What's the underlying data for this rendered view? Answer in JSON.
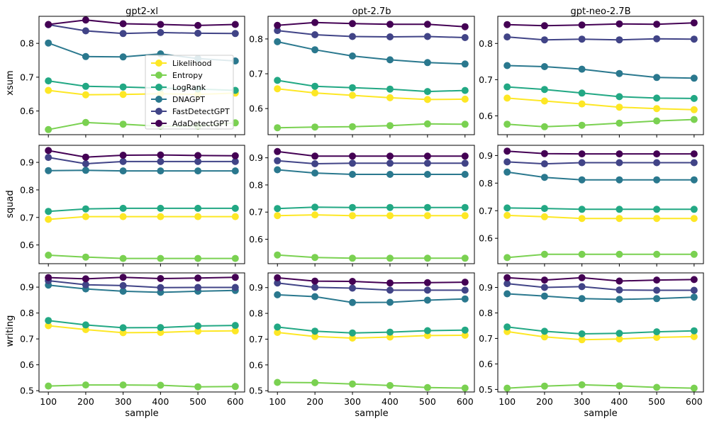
{
  "chart_data": {
    "type": "line",
    "columns": [
      "gpt2-xl",
      "opt-2.7b",
      "gpt-neo-2.7B"
    ],
    "rows": [
      "xsum",
      "squad",
      "writing"
    ],
    "xlabel": "sample",
    "x": [
      100,
      200,
      300,
      400,
      500,
      600
    ],
    "legend": {
      "location": "inside upper-right of top-left panel"
    },
    "series_names": [
      "Likelihood",
      "Entropy",
      "LogRank",
      "DNAGPT",
      "FastDetectGPT",
      "AdaDetectGPT"
    ],
    "series_colors": [
      "#fde725",
      "#7ad151",
      "#22a884",
      "#2a788e",
      "#414487",
      "#440154"
    ],
    "panels": [
      {
        "row": "xsum",
        "col": "gpt2-xl",
        "ylim": [
          0.53,
          0.88
        ],
        "yticks": [
          "0.6",
          "0.7",
          "0.8"
        ],
        "series": [
          {
            "name": "Likelihood",
            "values": [
              0.661,
              0.648,
              0.649,
              0.651,
              0.649,
              0.653
            ]
          },
          {
            "name": "Entropy",
            "values": [
              0.545,
              0.566,
              0.561,
              0.555,
              0.555,
              0.565
            ]
          },
          {
            "name": "LogRank",
            "values": [
              0.689,
              0.673,
              0.671,
              0.668,
              0.665,
              0.661
            ]
          },
          {
            "name": "DNAGPT",
            "values": [
              0.801,
              0.761,
              0.76,
              0.769,
              0.755,
              0.748
            ]
          },
          {
            "name": "FastDetectGPT",
            "values": [
              0.855,
              0.837,
              0.829,
              0.832,
              0.83,
              0.829
            ]
          },
          {
            "name": "AdaDetectGPT",
            "values": [
              0.856,
              0.869,
              0.858,
              0.856,
              0.853,
              0.856
            ]
          }
        ]
      },
      {
        "row": "xsum",
        "col": "opt-2.7b",
        "ylim": [
          0.525,
          0.865
        ],
        "yticks": [
          "0.6",
          "0.7",
          "0.8"
        ],
        "series": [
          {
            "name": "Likelihood",
            "values": [
              0.657,
              0.645,
              0.638,
              0.631,
              0.626,
              0.627
            ]
          },
          {
            "name": "Entropy",
            "values": [
              0.545,
              0.547,
              0.548,
              0.551,
              0.556,
              0.555
            ]
          },
          {
            "name": "LogRank",
            "values": [
              0.681,
              0.664,
              0.66,
              0.656,
              0.649,
              0.652
            ]
          },
          {
            "name": "DNAGPT",
            "values": [
              0.792,
              0.769,
              0.751,
              0.74,
              0.732,
              0.728
            ]
          },
          {
            "name": "FastDetectGPT",
            "values": [
              0.824,
              0.812,
              0.807,
              0.806,
              0.807,
              0.804
            ]
          },
          {
            "name": "AdaDetectGPT",
            "values": [
              0.839,
              0.847,
              0.844,
              0.842,
              0.842,
              0.835
            ]
          }
        ]
      },
      {
        "row": "xsum",
        "col": "gpt-neo-2.7B",
        "ylim": [
          0.548,
          0.875
        ],
        "yticks": [
          "0.6",
          "0.7",
          "0.8"
        ],
        "series": [
          {
            "name": "Likelihood",
            "values": [
              0.649,
              0.641,
              0.633,
              0.624,
              0.62,
              0.617
            ]
          },
          {
            "name": "Entropy",
            "values": [
              0.577,
              0.57,
              0.574,
              0.58,
              0.586,
              0.59
            ]
          },
          {
            "name": "LogRank",
            "values": [
              0.68,
              0.673,
              0.663,
              0.653,
              0.649,
              0.648
            ]
          },
          {
            "name": "DNAGPT",
            "values": [
              0.739,
              0.736,
              0.729,
              0.717,
              0.706,
              0.704
            ]
          },
          {
            "name": "FastDetectGPT",
            "values": [
              0.818,
              0.81,
              0.812,
              0.81,
              0.813,
              0.812
            ]
          },
          {
            "name": "AdaDetectGPT",
            "values": [
              0.852,
              0.849,
              0.851,
              0.854,
              0.853,
              0.857
            ]
          }
        ]
      },
      {
        "row": "squad",
        "col": "gpt2-xl",
        "ylim": [
          0.532,
          0.962
        ],
        "yticks": [
          "0.6",
          "0.7",
          "0.8",
          "0.9"
        ],
        "series": [
          {
            "name": "Likelihood",
            "values": [
              0.693,
              0.703,
              0.703,
              0.703,
              0.703,
              0.703
            ]
          },
          {
            "name": "Entropy",
            "values": [
              0.563,
              0.556,
              0.551,
              0.551,
              0.551,
              0.551
            ]
          },
          {
            "name": "LogRank",
            "values": [
              0.722,
              0.731,
              0.733,
              0.733,
              0.733,
              0.733
            ]
          },
          {
            "name": "DNAGPT",
            "values": [
              0.87,
              0.871,
              0.869,
              0.869,
              0.869,
              0.869
            ]
          },
          {
            "name": "FastDetectGPT",
            "values": [
              0.918,
              0.895,
              0.903,
              0.903,
              0.903,
              0.903
            ]
          },
          {
            "name": "AdaDetectGPT",
            "values": [
              0.943,
              0.919,
              0.926,
              0.927,
              0.925,
              0.924
            ]
          }
        ]
      },
      {
        "row": "squad",
        "col": "opt-2.7b",
        "ylim": [
          0.51,
          0.946
        ],
        "yticks": [
          "0.6",
          "0.7",
          "0.8",
          "0.9"
        ],
        "series": [
          {
            "name": "Likelihood",
            "values": [
              0.687,
              0.69,
              0.687,
              0.687,
              0.687,
              0.687
            ]
          },
          {
            "name": "Entropy",
            "values": [
              0.542,
              0.533,
              0.53,
              0.53,
              0.53,
              0.53
            ]
          },
          {
            "name": "LogRank",
            "values": [
              0.713,
              0.718,
              0.717,
              0.717,
              0.717,
              0.717
            ]
          },
          {
            "name": "DNAGPT",
            "values": [
              0.856,
              0.844,
              0.839,
              0.839,
              0.839,
              0.839
            ]
          },
          {
            "name": "FastDetectGPT",
            "values": [
              0.889,
              0.878,
              0.88,
              0.88,
              0.88,
              0.88
            ]
          },
          {
            "name": "AdaDetectGPT",
            "values": [
              0.923,
              0.906,
              0.906,
              0.906,
              0.906,
              0.906
            ]
          }
        ]
      },
      {
        "row": "squad",
        "col": "gpt-neo-2.7B",
        "ylim": [
          0.508,
          0.937
        ],
        "yticks": [
          "0.6",
          "0.7",
          "0.8",
          "0.9"
        ],
        "series": [
          {
            "name": "Likelihood",
            "values": [
              0.683,
              0.678,
              0.672,
              0.672,
              0.672,
              0.672
            ]
          },
          {
            "name": "Entropy",
            "values": [
              0.53,
              0.542,
              0.542,
              0.542,
              0.542,
              0.542
            ]
          },
          {
            "name": "LogRank",
            "values": [
              0.71,
              0.708,
              0.705,
              0.705,
              0.705,
              0.705
            ]
          },
          {
            "name": "DNAGPT",
            "values": [
              0.84,
              0.821,
              0.812,
              0.812,
              0.812,
              0.812
            ]
          },
          {
            "name": "FastDetectGPT",
            "values": [
              0.877,
              0.87,
              0.874,
              0.874,
              0.874,
              0.874
            ]
          },
          {
            "name": "AdaDetectGPT",
            "values": [
              0.916,
              0.907,
              0.906,
              0.906,
              0.906,
              0.906
            ]
          }
        ]
      },
      {
        "row": "writing",
        "col": "gpt2-xl",
        "ylim": [
          0.495,
          0.955
        ],
        "yticks": [
          "0.5",
          "0.6",
          "0.7",
          "0.8",
          "0.9"
        ],
        "series": [
          {
            "name": "Likelihood",
            "values": [
              0.751,
              0.736,
              0.724,
              0.725,
              0.73,
              0.731
            ]
          },
          {
            "name": "Entropy",
            "values": [
              0.518,
              0.522,
              0.522,
              0.521,
              0.515,
              0.516
            ]
          },
          {
            "name": "LogRank",
            "values": [
              0.771,
              0.754,
              0.743,
              0.744,
              0.75,
              0.752
            ]
          },
          {
            "name": "DNAGPT",
            "values": [
              0.908,
              0.893,
              0.884,
              0.88,
              0.884,
              0.887
            ]
          },
          {
            "name": "FastDetectGPT",
            "values": [
              0.925,
              0.909,
              0.906,
              0.898,
              0.899,
              0.899
            ]
          },
          {
            "name": "AdaDetectGPT",
            "values": [
              0.937,
              0.932,
              0.938,
              0.933,
              0.935,
              0.938
            ]
          }
        ]
      },
      {
        "row": "writing",
        "col": "opt-2.7b",
        "ylim": [
          0.495,
          0.957
        ],
        "yticks": [
          "0.5",
          "0.6",
          "0.7",
          "0.8",
          "0.9"
        ],
        "series": [
          {
            "name": "Likelihood",
            "values": [
              0.726,
              0.71,
              0.704,
              0.708,
              0.714,
              0.715
            ]
          },
          {
            "name": "Entropy",
            "values": [
              0.532,
              0.531,
              0.526,
              0.52,
              0.512,
              0.51
            ]
          },
          {
            "name": "LogRank",
            "values": [
              0.747,
              0.731,
              0.724,
              0.727,
              0.733,
              0.735
            ]
          },
          {
            "name": "DNAGPT",
            "values": [
              0.872,
              0.865,
              0.842,
              0.843,
              0.851,
              0.856
            ]
          },
          {
            "name": "FastDetectGPT",
            "values": [
              0.918,
              0.901,
              0.898,
              0.89,
              0.89,
              0.89
            ]
          },
          {
            "name": "AdaDetectGPT",
            "values": [
              0.938,
              0.925,
              0.924,
              0.918,
              0.919,
              0.921
            ]
          }
        ]
      },
      {
        "row": "writing",
        "col": "gpt-neo-2.7B",
        "ylim": [
          0.49,
          0.957
        ],
        "yticks": [
          "0.5",
          "0.6",
          "0.7",
          "0.8",
          "0.9"
        ],
        "series": [
          {
            "name": "Likelihood",
            "values": [
              0.727,
              0.706,
              0.695,
              0.698,
              0.704,
              0.707
            ]
          },
          {
            "name": "Entropy",
            "values": [
              0.505,
              0.513,
              0.518,
              0.514,
              0.508,
              0.505
            ]
          },
          {
            "name": "LogRank",
            "values": [
              0.745,
              0.728,
              0.718,
              0.72,
              0.726,
              0.73
            ]
          },
          {
            "name": "DNAGPT",
            "values": [
              0.875,
              0.866,
              0.856,
              0.853,
              0.856,
              0.862
            ]
          },
          {
            "name": "FastDetectGPT",
            "values": [
              0.915,
              0.9,
              0.903,
              0.89,
              0.889,
              0.889
            ]
          },
          {
            "name": "AdaDetectGPT",
            "values": [
              0.938,
              0.929,
              0.938,
              0.925,
              0.929,
              0.931
            ]
          }
        ]
      }
    ]
  }
}
